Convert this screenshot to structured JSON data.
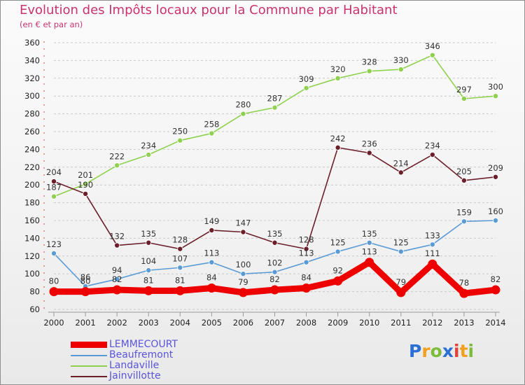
{
  "title": "Evolution des Impôts locaux pour la Commune par Habitant",
  "subtitle": "(en € et par an)",
  "logo": {
    "text": "Proxiti",
    "letters": [
      {
        "ch": "P",
        "color": "#2b6fd6"
      },
      {
        "ch": "r",
        "color": "#f0a01e"
      },
      {
        "ch": "o",
        "color": "#7dbb3a"
      },
      {
        "ch": "x",
        "color": "#2b6fd6"
      },
      {
        "ch": "i",
        "color": "#e0433a"
      },
      {
        "ch": "t",
        "color": "#f0a01e"
      },
      {
        "ch": "i",
        "color": "#7dbb3a"
      }
    ]
  },
  "chart_data": {
    "type": "line",
    "x": [
      2000,
      2001,
      2002,
      2003,
      2004,
      2005,
      2006,
      2007,
      2008,
      2009,
      2010,
      2011,
      2012,
      2013,
      2014
    ],
    "ylim": [
      60,
      360
    ],
    "yticks": [
      60,
      80,
      100,
      120,
      140,
      160,
      180,
      200,
      220,
      240,
      260,
      280,
      300,
      320,
      340,
      360
    ],
    "grid": true,
    "legend_position": "bottom-left",
    "series": [
      {
        "name": "LEMMECOURT",
        "color": "#ee0000",
        "values": [
          80,
          80,
          82,
          81,
          81,
          84,
          79,
          82,
          84,
          92,
          113,
          79,
          111,
          78,
          82
        ]
      },
      {
        "name": "Beaufremont",
        "color": "#5b9bd5",
        "values": [
          123,
          86,
          94,
          104,
          107,
          113,
          100,
          102,
          113,
          125,
          135,
          125,
          133,
          159,
          160
        ]
      },
      {
        "name": "Landaville",
        "color": "#8fd14f",
        "values": [
          187,
          201,
          222,
          234,
          250,
          258,
          280,
          287,
          309,
          320,
          328,
          330,
          346,
          297,
          300
        ]
      },
      {
        "name": "Jainvillotte",
        "color": "#6b1f2a",
        "values": [
          204,
          190,
          132,
          135,
          128,
          149,
          147,
          135,
          128,
          242,
          236,
          214,
          234,
          205,
          209
        ]
      }
    ]
  }
}
